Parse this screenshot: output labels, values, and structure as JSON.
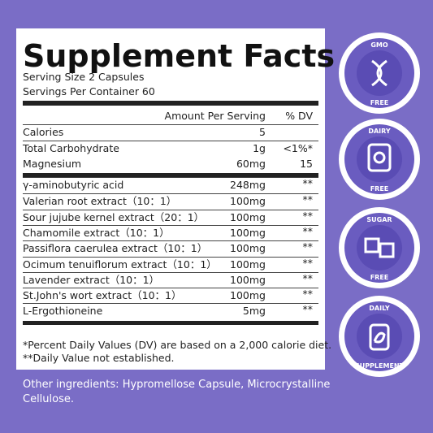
{
  "header": {
    "title": "Supplement Facts",
    "serving_size": "Serving Size 2 Capsules",
    "servings": "Servings Per Container 60"
  },
  "table": {
    "columns": [
      "Amount Per Serving",
      "% DV"
    ],
    "rows": [
      [
        "Calories",
        "5",
        ""
      ],
      [
        "Total Carbohydrate",
        "1g",
        "<1%*"
      ],
      [
        "Magnesium",
        "60mg",
        "15"
      ],
      [
        "γ-aminobutyric acid",
        "248mg",
        "**"
      ],
      [
        "Valerian root extract（10：1）",
        "100mg",
        "**"
      ],
      [
        "Sour jujube kernel extract（20：1）",
        "100mg",
        "**"
      ],
      [
        "Chamomile extract（10：1）",
        "100mg",
        "**"
      ],
      [
        "Passiflora caerulea extract（10：1）",
        "100mg",
        "**"
      ],
      [
        "Ocimum tenuiflorum extract（10：1）",
        "100mg",
        "**"
      ],
      [
        "Lavender extract（10：1）",
        "100mg",
        "**"
      ],
      [
        "St.John's wort extract（10：1）",
        "100mg",
        "**"
      ],
      [
        "L-Ergothioneine",
        "5mg",
        "**"
      ]
    ]
  },
  "footnotes": [
    "*Percent Daily Values (DV) are based on a 2,000 calorie diet.",
    "**Daily Value not established."
  ],
  "other_ingredients": [
    "Other ingredients: Hypromellose Capsule, Microcrystalline",
    "Cellulose."
  ],
  "badges": [
    {
      "top": "GMO",
      "bottom": "FREE"
    },
    {
      "top": "DAIRY",
      "bottom": "FREE"
    },
    {
      "top": "SUGAR",
      "bottom": "FREE"
    },
    {
      "top": "DAILY",
      "bottom": "SUPPLEMENT"
    }
  ]
}
